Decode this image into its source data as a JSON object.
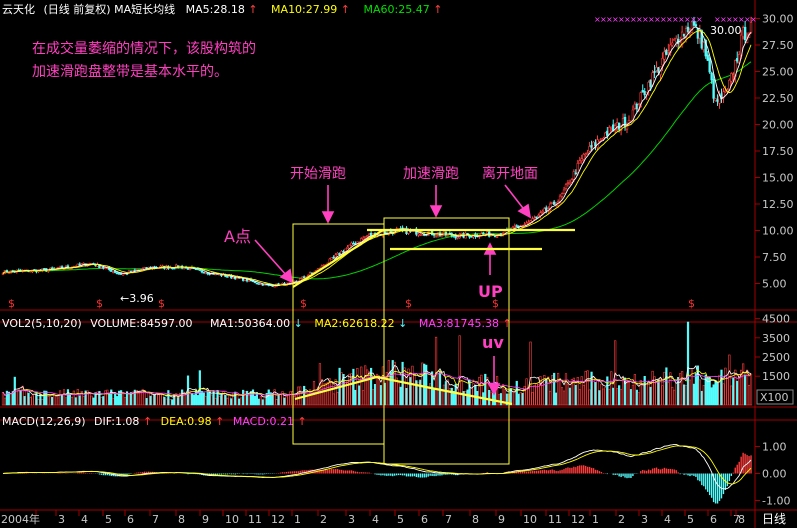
{
  "chart_data": {
    "type": "candlestick",
    "stock_header": {
      "name": "云天化",
      "period": "(日线 前复权)",
      "indicator": "MA短长均线",
      "ma5": "MA5:28.18",
      "ma10": "MA10:27.99",
      "ma60": "MA60:25.47"
    },
    "volume_header": {
      "vol": "VOL2(5,10,20)",
      "volume": "VOLUME:84597.00",
      "ma1": "MA1:50364.00",
      "ma2": "MA2:62618.22",
      "ma3": "MA3:81745.38"
    },
    "macd_header": {
      "macd": "MACD(12,26,9)",
      "dif": "DIF:1.08",
      "dea": "DEA:0.98",
      "macd_val": "MACD:0.21"
    },
    "price_axis": [
      "30.00",
      "27.50",
      "25.00",
      "22.50",
      "20.00",
      "17.50",
      "15.00",
      "12.50",
      "10.00",
      "7.50",
      "5.00"
    ],
    "volume_axis": [
      "4500",
      "3500",
      "2500",
      "1500"
    ],
    "volume_unit": "X100",
    "macd_axis": [
      "1.00",
      "0.00",
      "-1.00"
    ],
    "x_axis": [
      "2004年",
      "3",
      "4",
      "5",
      "6",
      "7",
      "8",
      "9",
      "10",
      "11",
      "12",
      "1",
      "2",
      "3",
      "4",
      "5",
      "6",
      "7",
      "8",
      "9",
      "10",
      "11",
      "12",
      "1",
      "2",
      "3",
      "4",
      "5",
      "6",
      "7",
      "8"
    ],
    "period_label": "日线",
    "price_marker": "30.00",
    "low_marker": "←3.96",
    "s_marker": "$",
    "annotations": {
      "note_line1": "在成交量萎缩的情况下，该股构筑的",
      "note_line2": "加速滑跑盘整带是基本水平的。",
      "start_runway": "开始滑跑",
      "accel_runway": "加速滑跑",
      "takeoff": "离开地面",
      "point_a": "A点",
      "up": "UP",
      "uv": "uv"
    },
    "colors": {
      "up_candle": "#ff3c3c",
      "down_candle": "#54fcfc",
      "ma5": "#ffffff",
      "ma10": "#ffff00",
      "ma60": "#00d000",
      "annotation": "#ff40c0",
      "trendline": "#ffff40"
    }
  }
}
